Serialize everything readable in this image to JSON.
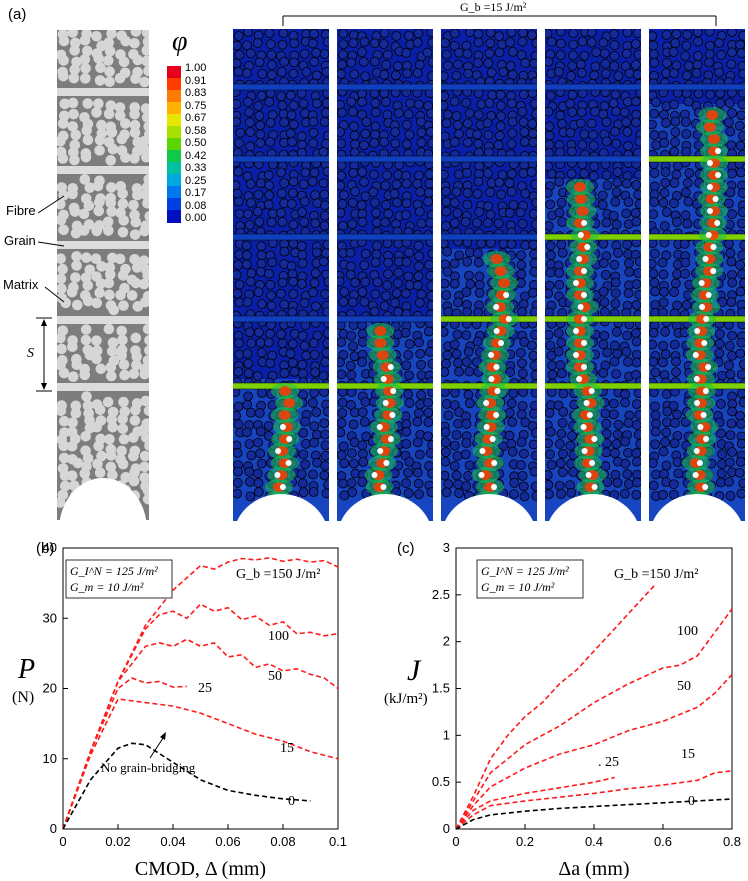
{
  "panel_a": {
    "label": "(a)",
    "bracket_label": "G_b =15 J/m²",
    "phi_symbol": "φ",
    "colorbar_ticks": [
      "1.00",
      "0.91",
      "0.83",
      "0.75",
      "0.67",
      "0.58",
      "0.50",
      "0.42",
      "0.33",
      "0.25",
      "0.17",
      "0.08",
      "0.00"
    ],
    "colorbar_colors": [
      "#e8001a",
      "#ff3b00",
      "#ff7a00",
      "#ffb000",
      "#e6e600",
      "#a8e000",
      "#5cd600",
      "#10c84a",
      "#00c0a0",
      "#00a8e0",
      "#0078f0",
      "#0040e0",
      "#0010c0"
    ],
    "schematic_labels": {
      "fibre": "Fibre",
      "grain": "Grain",
      "matrix": "Matrix",
      "spacing": "S"
    }
  },
  "panel_b": {
    "label": "(b)",
    "legend_line1": "G_I^N = 125 J/m²",
    "legend_line2": "G_m = 10 J/m²",
    "annotation_arrow": "No grain-bridging"
  },
  "panel_c": {
    "label": "(c)",
    "legend_line1": "G_I^N = 125 J/m²",
    "legend_line2": "G_m = 10 J/m²"
  },
  "chart_data": [
    {
      "type": "line",
      "id": "b",
      "xlabel": "CMOD, Δ (mm)",
      "ylabel": "P (N)",
      "xlim": [
        0,
        0.1
      ],
      "ylim": [
        0,
        40
      ],
      "xticks": [
        "0",
        "0.02",
        "0.04",
        "0.06",
        "0.08",
        "0.1"
      ],
      "yticks": [
        "0",
        "10",
        "20",
        "30",
        "40"
      ],
      "series": [
        {
          "name": "Gb = 150 J/m²",
          "label": "G_b =150 J/m²",
          "color": "#ff1a1a",
          "x": [
            0,
            0.01,
            0.02,
            0.03,
            0.04,
            0.05,
            0.055,
            0.06,
            0.065,
            0.07,
            0.075,
            0.08,
            0.085,
            0.09,
            0.095,
            0.1
          ],
          "y": [
            0,
            11,
            21,
            29,
            34,
            37.5,
            37,
            38,
            38.5,
            38.3,
            38.6,
            38.1,
            38.4,
            38,
            38.2,
            37.3
          ]
        },
        {
          "name": "Gb = 100 J/m²",
          "label": "100",
          "color": "#ff1a1a",
          "x": [
            0,
            0.01,
            0.02,
            0.03,
            0.035,
            0.04,
            0.045,
            0.05,
            0.055,
            0.06,
            0.065,
            0.07,
            0.075,
            0.08,
            0.085,
            0.09,
            0.095,
            0.1
          ],
          "y": [
            0,
            11,
            21,
            28.5,
            30.5,
            31,
            30,
            32,
            31,
            31.5,
            29.8,
            30.3,
            29,
            29.5,
            27.8,
            28,
            27.5,
            27.8
          ]
        },
        {
          "name": "Gb = 50 J/m²",
          "label": "50",
          "color": "#ff1a1a",
          "x": [
            0,
            0.01,
            0.02,
            0.03,
            0.035,
            0.04,
            0.045,
            0.05,
            0.055,
            0.06,
            0.065,
            0.07,
            0.075,
            0.08,
            0.085,
            0.09,
            0.095,
            0.1
          ],
          "y": [
            0,
            11,
            21,
            26,
            26.5,
            26,
            27,
            26,
            26.5,
            24.5,
            24.8,
            23,
            23.5,
            22.5,
            22.8,
            22,
            21.5,
            20
          ]
        },
        {
          "name": "Gb = 25 J/m²",
          "label": "25",
          "color": "#ff1a1a",
          "x": [
            0,
            0.01,
            0.02,
            0.025,
            0.03,
            0.035,
            0.04,
            0.045
          ],
          "y": [
            0,
            11,
            20,
            21.5,
            20.8,
            21,
            20.2,
            20.3
          ]
        },
        {
          "name": "Gb = 15 J/m²",
          "label": "15",
          "color": "#ff1a1a",
          "x": [
            0,
            0.01,
            0.02,
            0.03,
            0.04,
            0.05,
            0.06,
            0.07,
            0.08,
            0.09,
            0.1
          ],
          "y": [
            0,
            10.5,
            18.5,
            18,
            17.5,
            16.5,
            15,
            13.5,
            12.5,
            11,
            10
          ]
        },
        {
          "name": "Gb = 0 J/m²",
          "label": "0",
          "color": "#000000",
          "x": [
            0,
            0.01,
            0.02,
            0.025,
            0.03,
            0.04,
            0.05,
            0.06,
            0.07,
            0.08,
            0.09
          ],
          "y": [
            0,
            7,
            11.5,
            12.2,
            12,
            9.5,
            7,
            5.5,
            4.8,
            4.3,
            4
          ]
        }
      ]
    },
    {
      "type": "line",
      "id": "c",
      "xlabel": "Δa (mm)",
      "ylabel": "J (kJ/m²)",
      "xlim": [
        0,
        0.8
      ],
      "ylim": [
        0,
        3
      ],
      "xticks": [
        "0",
        "0.2",
        "0.4",
        "0.6",
        "0.8"
      ],
      "yticks": [
        "0",
        "0.5",
        "1",
        "1.5",
        "2",
        "2.5",
        "3"
      ],
      "series": [
        {
          "name": "Gb = 150 J/m²",
          "label": "G_b =150 J/m²",
          "color": "#ff1a1a",
          "x": [
            0,
            0.05,
            0.1,
            0.15,
            0.2,
            0.25,
            0.3,
            0.35,
            0.4,
            0.45,
            0.5,
            0.55,
            0.58
          ],
          "y": [
            0,
            0.35,
            0.75,
            1.0,
            1.2,
            1.35,
            1.55,
            1.7,
            1.9,
            2.1,
            2.3,
            2.5,
            2.62
          ]
        },
        {
          "name": "Gb = 100 J/m²",
          "label": "100",
          "color": "#ff1a1a",
          "x": [
            0,
            0.05,
            0.1,
            0.15,
            0.2,
            0.3,
            0.4,
            0.5,
            0.6,
            0.65,
            0.7,
            0.75,
            0.8
          ],
          "y": [
            0,
            0.3,
            0.6,
            0.75,
            0.9,
            1.1,
            1.35,
            1.55,
            1.72,
            1.75,
            1.85,
            2.1,
            2.35
          ]
        },
        {
          "name": "Gb = 50 J/m²",
          "label": "50",
          "color": "#ff1a1a",
          "x": [
            0,
            0.05,
            0.1,
            0.2,
            0.3,
            0.4,
            0.5,
            0.6,
            0.7,
            0.75,
            0.8
          ],
          "y": [
            0,
            0.25,
            0.45,
            0.65,
            0.8,
            0.9,
            1.05,
            1.15,
            1.3,
            1.45,
            1.65
          ]
        },
        {
          "name": "Gb = 25 J/m²",
          "label": "25",
          "color": "#ff1a1a",
          "x": [
            0,
            0.05,
            0.1,
            0.2,
            0.3,
            0.4,
            0.46
          ],
          "y": [
            0,
            0.2,
            0.3,
            0.38,
            0.44,
            0.5,
            0.55
          ]
        },
        {
          "name": "Gb = 15 J/m²",
          "label": "15",
          "color": "#ff1a1a",
          "x": [
            0,
            0.05,
            0.1,
            0.2,
            0.3,
            0.4,
            0.5,
            0.6,
            0.7,
            0.75,
            0.8
          ],
          "y": [
            0,
            0.15,
            0.25,
            0.3,
            0.34,
            0.38,
            0.43,
            0.47,
            0.52,
            0.6,
            0.62
          ]
        },
        {
          "name": "Gb = 0 J/m²",
          "label": "0",
          "color": "#000000",
          "x": [
            0,
            0.05,
            0.1,
            0.2,
            0.3,
            0.4,
            0.5,
            0.6,
            0.7,
            0.8
          ],
          "y": [
            0,
            0.1,
            0.15,
            0.19,
            0.22,
            0.24,
            0.26,
            0.28,
            0.3,
            0.32
          ]
        }
      ]
    }
  ]
}
